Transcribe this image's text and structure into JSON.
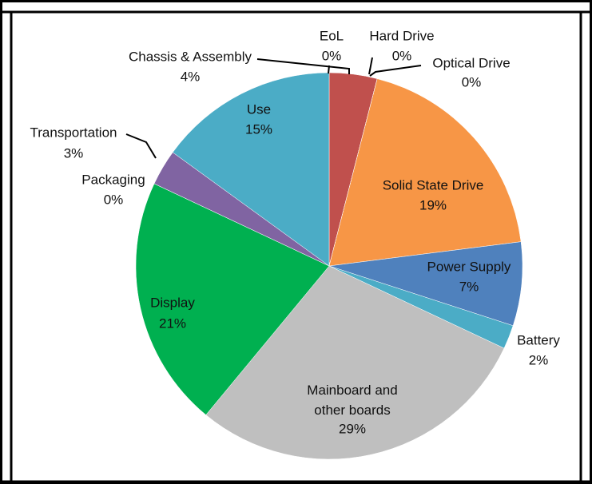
{
  "chart_data": {
    "type": "pie",
    "categories": [
      "EoL",
      "Chassis & Assembly",
      "Hard Drive",
      "Optical Drive",
      "Solid State Drive",
      "Power Supply",
      "Battery",
      "Mainboard and other boards",
      "Display",
      "Packaging",
      "Transportation",
      "Use"
    ],
    "values": [
      0,
      4,
      0,
      0,
      19,
      7,
      2,
      29,
      21,
      0,
      3,
      15
    ],
    "value_labels": [
      "0%",
      "4%",
      "0%",
      "0%",
      "19%",
      "7%",
      "2%",
      "29%",
      "21%",
      "0%",
      "3%",
      "15%"
    ],
    "colors": [
      "#f4a460",
      "#c0504d",
      "#d9534f",
      "#e8a060",
      "#f79646",
      "#4f81bd",
      "#4bacc6",
      "#bfbfbf",
      "#00b050",
      "#9bbb59",
      "#8064a2",
      "#4bacc6"
    ]
  }
}
